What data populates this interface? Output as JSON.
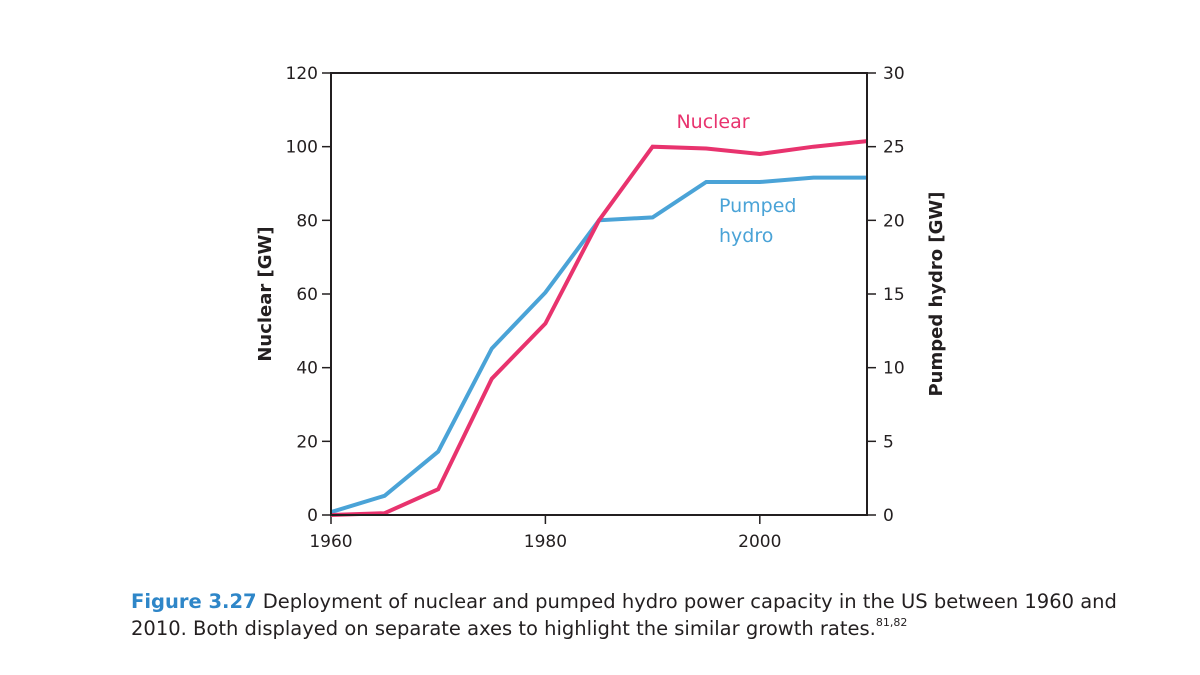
{
  "chart_data": {
    "type": "line",
    "title": "",
    "xlabel": "",
    "ylabel_left": "Nuclear [GW]",
    "ylabel_right": "Pumped hydro [GW]",
    "xlim": [
      1960,
      2010
    ],
    "ylim_left": [
      0,
      120
    ],
    "ylim_right": [
      0,
      30
    ],
    "x_ticks": [
      1960,
      1980,
      2000
    ],
    "y_ticks_left": [
      0,
      20,
      40,
      60,
      80,
      100,
      120
    ],
    "y_ticks_right": [
      0,
      5,
      10,
      15,
      20,
      25,
      30
    ],
    "grid": false,
    "series": [
      {
        "name": "Nuclear",
        "axis": "left",
        "color": "#e8336e",
        "x": [
          1960,
          1965,
          1970,
          1975,
          1980,
          1985,
          1990,
          1995,
          2000,
          2005,
          2010
        ],
        "y": [
          0,
          0.5,
          7,
          37,
          52,
          80,
          100,
          99.5,
          98,
          100,
          101.5
        ]
      },
      {
        "name": "Pumped hydro",
        "axis": "right",
        "color": "#4aa3d7",
        "x": [
          1960,
          1965,
          1970,
          1975,
          1980,
          1985,
          1990,
          1995,
          2000,
          2005,
          2010
        ],
        "y": [
          0.2,
          1.3,
          4.3,
          11.3,
          15.1,
          20,
          20.2,
          22.6,
          22.6,
          22.9,
          22.9
        ]
      }
    ]
  },
  "series_labels": {
    "nuclear": "Nuclear",
    "pumped_line1": "Pumped",
    "pumped_line2": "hydro"
  },
  "caption": {
    "label": "Figure 3.27",
    "text": " Deployment of nuclear and pumped hydro power capacity in the US between 1960 and 2010. Both displayed on separate axes to highlight the similar growth rates.",
    "refs": "81,82",
    "label_color": "#2e86c8"
  }
}
